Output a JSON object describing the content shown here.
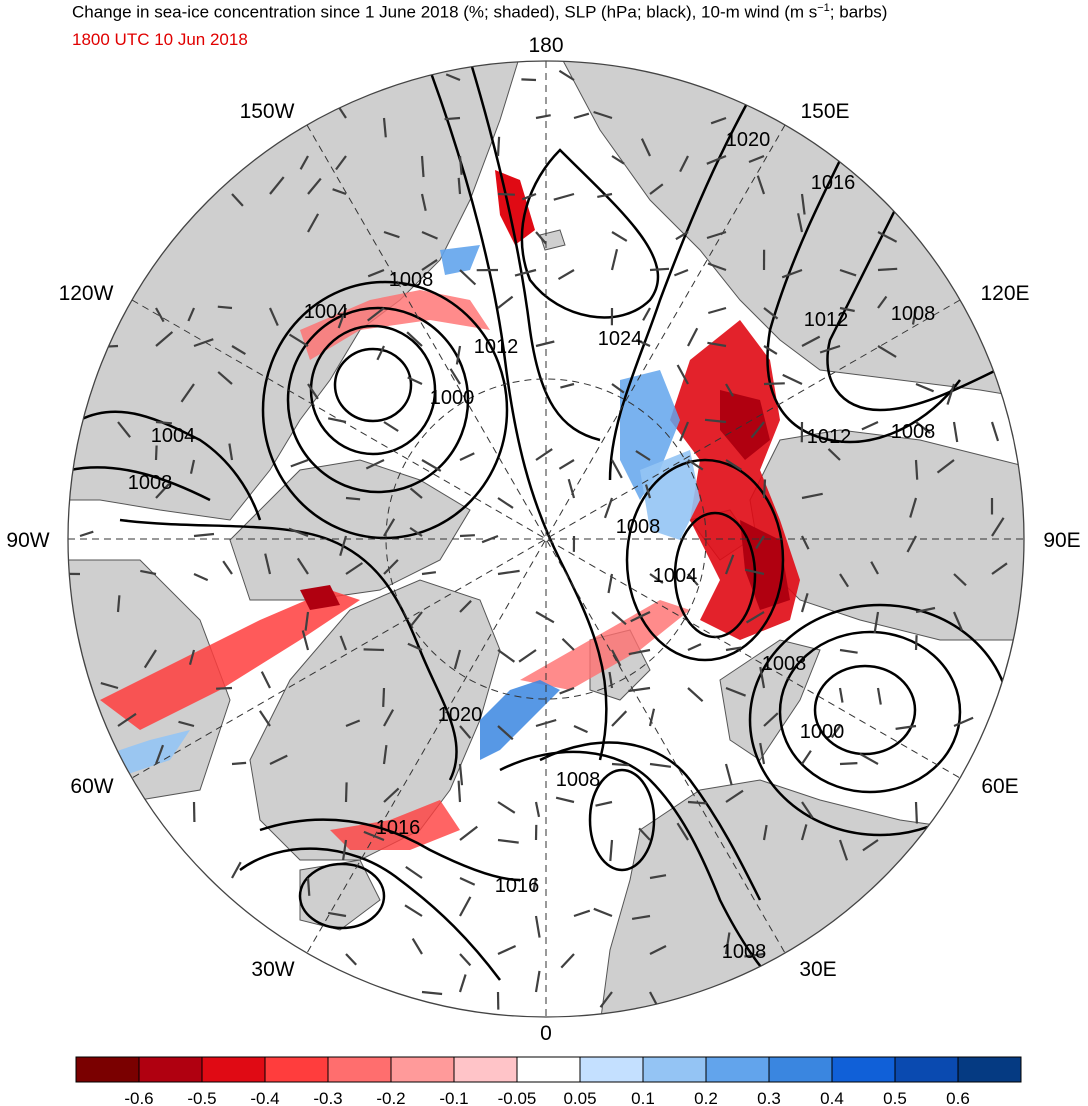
{
  "title": {
    "main": "Change in sea-ice concentration since 1 June 2018 (%; shaded), SLP (hPa; black), 10-m wind (m s",
    "sup": "−1",
    "tail": "; barbs)",
    "valid_time": "1800 UTC 10 Jun 2018"
  },
  "longitude_labels": [
    "180",
    "150E",
    "120E",
    "90E",
    "60E",
    "30E",
    "0",
    "30W",
    "60W",
    "90W",
    "120W",
    "150W"
  ],
  "slp_contour_labels": [
    "1020",
    "1016",
    "1012",
    "1008",
    "1024",
    "1012",
    "1008",
    "1012",
    "1008",
    "1004",
    "1000",
    "1004",
    "1008",
    "1000",
    "1004",
    "1008",
    "1008",
    "1008",
    "1020",
    "1016",
    "1016",
    "1008"
  ],
  "colorbar": {
    "ticks": [
      "-0.6",
      "-0.5",
      "-0.4",
      "-0.3",
      "-0.2",
      "-0.1",
      "-0.05",
      "0.05",
      "0.1",
      "0.2",
      "0.3",
      "0.4",
      "0.5",
      "0.6"
    ],
    "colors": [
      "#7a0000",
      "#b00010",
      "#e00a14",
      "#ff3d3d",
      "#ff6e6e",
      "#ff9a9a",
      "#ffc4c8",
      "#ffffff",
      "#c4e0ff",
      "#94c4f4",
      "#62a4ec",
      "#3a86e0",
      "#1060d8",
      "#0a4ab0",
      "#053a82"
    ]
  },
  "map_colors": {
    "land": "#cfcfcf",
    "ocean": "#ffffff",
    "contour": "#000000",
    "barb": "#404040"
  }
}
